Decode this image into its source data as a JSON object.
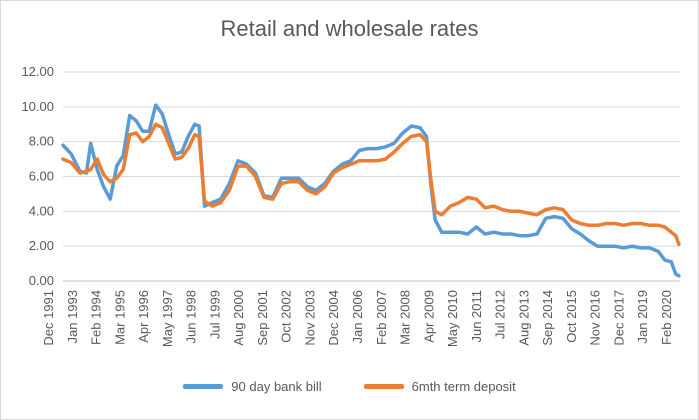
{
  "chart_data": {
    "type": "line",
    "title": "Retail and wholesale rates",
    "xlabel": "",
    "ylabel": "",
    "ylim": [
      0,
      12
    ],
    "yticks": [
      "0.00",
      "2.00",
      "4.00",
      "6.00",
      "8.00",
      "10.00",
      "12.00"
    ],
    "xticks": [
      "Dec 1991",
      "Jan 1993",
      "Feb 1994",
      "Mar 1995",
      "Apr 1996",
      "May 1997",
      "Jun 1998",
      "Jul 1999",
      "Aug 2000",
      "Sep 2001",
      "Oct 2002",
      "Nov 2003",
      "Dec 2004",
      "Jan 2006",
      "Feb 2007",
      "Mar 2008",
      "Apr 2009",
      "May 2010",
      "Jun 2011",
      "Jul 2012",
      "Aug 2013",
      "Sep 2014",
      "Oct 2015",
      "Nov 2016",
      "Dec 2017",
      "Jan 2019",
      "Feb 2020"
    ],
    "grid": true,
    "legend_position": "bottom",
    "x": [
      1991.92,
      1992.3,
      1992.7,
      1993.0,
      1993.2,
      1993.5,
      1993.8,
      1994.1,
      1994.4,
      1994.7,
      1995.0,
      1995.3,
      1995.6,
      1995.9,
      1996.2,
      1996.5,
      1996.8,
      1997.1,
      1997.4,
      1997.7,
      1998.0,
      1998.2,
      1998.45,
      1998.8,
      1999.2,
      1999.6,
      2000.0,
      2000.4,
      2000.8,
      2001.2,
      2001.6,
      2002.0,
      2002.4,
      2002.8,
      2003.2,
      2003.6,
      2004.0,
      2004.4,
      2004.8,
      2005.2,
      2005.6,
      2006.0,
      2006.4,
      2006.8,
      2007.2,
      2007.6,
      2008.0,
      2008.4,
      2008.7,
      2008.9,
      2009.1,
      2009.4,
      2009.8,
      2010.2,
      2010.6,
      2011.0,
      2011.4,
      2011.8,
      2012.2,
      2012.6,
      2013.0,
      2013.4,
      2013.8,
      2014.2,
      2014.6,
      2015.0,
      2015.4,
      2015.8,
      2016.2,
      2016.6,
      2017.0,
      2017.4,
      2017.8,
      2018.2,
      2018.6,
      2019.0,
      2019.4,
      2019.7,
      2020.0,
      2020.2,
      2020.35
    ],
    "series": [
      {
        "name": "90 day bank bill",
        "color": "#5b9bd5",
        "values": [
          7.8,
          7.3,
          6.3,
          6.2,
          7.9,
          6.4,
          5.4,
          4.7,
          6.6,
          7.2,
          9.5,
          9.2,
          8.6,
          8.6,
          10.1,
          9.6,
          8.4,
          7.3,
          7.4,
          8.3,
          9.0,
          8.9,
          4.3,
          4.5,
          4.7,
          5.6,
          6.9,
          6.7,
          6.2,
          4.9,
          4.8,
          5.9,
          5.9,
          5.9,
          5.4,
          5.2,
          5.6,
          6.3,
          6.7,
          6.9,
          7.5,
          7.6,
          7.6,
          7.7,
          7.9,
          8.5,
          8.9,
          8.8,
          8.3,
          5.5,
          3.5,
          2.8,
          2.8,
          2.8,
          2.7,
          3.1,
          2.7,
          2.8,
          2.7,
          2.7,
          2.6,
          2.6,
          2.7,
          3.6,
          3.7,
          3.6,
          3.0,
          2.7,
          2.3,
          2.0,
          2.0,
          2.0,
          1.9,
          2.0,
          1.9,
          1.9,
          1.7,
          1.2,
          1.1,
          0.4,
          0.3
        ]
      },
      {
        "name": "6mth term deposit",
        "color": "#ed7d31",
        "values": [
          7.0,
          6.8,
          6.2,
          6.3,
          6.4,
          7.0,
          6.1,
          5.7,
          5.9,
          6.4,
          8.4,
          8.5,
          8.0,
          8.3,
          9.0,
          8.8,
          7.9,
          7.0,
          7.1,
          7.6,
          8.4,
          8.3,
          4.6,
          4.3,
          4.5,
          5.2,
          6.6,
          6.6,
          6.0,
          4.8,
          4.7,
          5.6,
          5.7,
          5.7,
          5.2,
          5.0,
          5.4,
          6.2,
          6.5,
          6.7,
          6.9,
          6.9,
          6.9,
          7.0,
          7.4,
          7.9,
          8.3,
          8.4,
          8.0,
          5.8,
          4.0,
          3.8,
          4.3,
          4.5,
          4.8,
          4.7,
          4.2,
          4.3,
          4.1,
          4.0,
          4.0,
          3.9,
          3.8,
          4.1,
          4.2,
          4.1,
          3.5,
          3.3,
          3.2,
          3.2,
          3.3,
          3.3,
          3.2,
          3.3,
          3.3,
          3.2,
          3.2,
          3.1,
          2.8,
          2.6,
          2.1
        ]
      }
    ]
  }
}
